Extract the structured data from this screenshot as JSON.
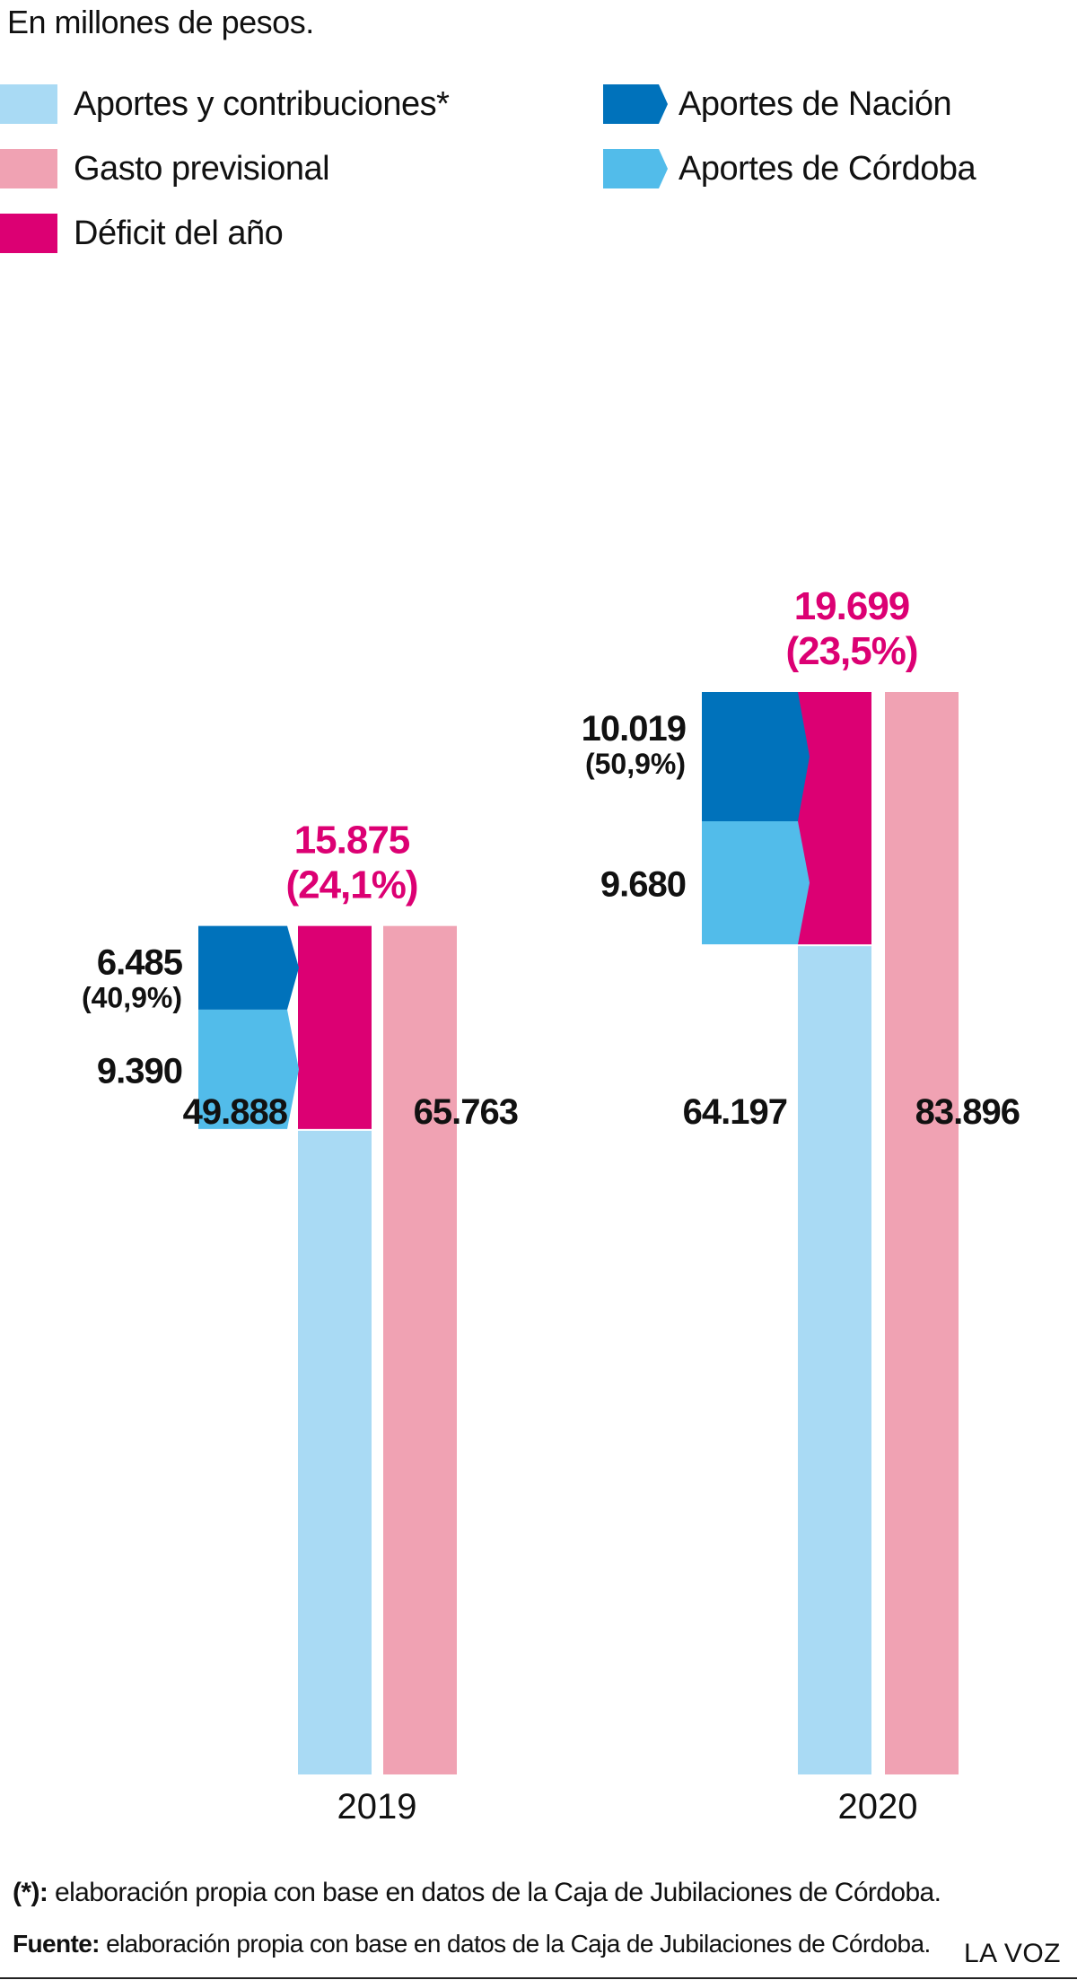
{
  "subtitle": "En millones de pesos.",
  "legend": {
    "aportes": "Aportes y contribuciones*",
    "gasto": "Gasto previsional",
    "deficit": "Déficit del año",
    "nacion": "Aportes de Nación",
    "cordoba": "Aportes de Córdoba"
  },
  "colors": {
    "aportes": "#a9daf4",
    "gasto": "#f0a2b3",
    "deficit": "#dc0073",
    "nacion": "#0072bb",
    "cordoba": "#52bcea",
    "deficit_text": "#dc0073"
  },
  "chart_data": {
    "type": "bar",
    "categories": [
      "2019",
      "2020"
    ],
    "series": [
      {
        "name": "Aportes y contribuciones*",
        "values": [
          49888,
          64197
        ]
      },
      {
        "name": "Déficit del año",
        "values": [
          15875,
          19699
        ]
      },
      {
        "name": "Gasto previsional",
        "values": [
          65763,
          83896
        ]
      },
      {
        "name": "Aportes de Nación",
        "values": [
          6485,
          10019
        ]
      },
      {
        "name": "Aportes de Córdoba",
        "values": [
          9390,
          9680
        ]
      }
    ],
    "labels": {
      "aportes": [
        "49.888",
        "64.197"
      ],
      "gasto": [
        "65.763",
        "83.896"
      ],
      "deficit": [
        "15.875",
        "19.699"
      ],
      "deficit_pct": [
        "(24,1%)",
        "(23,5%)"
      ],
      "nacion": [
        "6.485",
        "10.019"
      ],
      "nacion_pct": [
        "(40,9%)",
        "(50,9%)"
      ],
      "cordoba": [
        "9.390",
        "9.680"
      ]
    },
    "ylim": [
      0,
      83896
    ]
  },
  "footnotes": {
    "note_mark": "(*):",
    "note_text": " elaboración propia con base en datos de la Caja de Jubilaciones de Córdoba.",
    "source_mark": "Fuente:",
    "source_text": " elaboración propia con base en datos de la Caja de Jubilaciones de Córdoba.",
    "brand": "LA VOZ"
  }
}
